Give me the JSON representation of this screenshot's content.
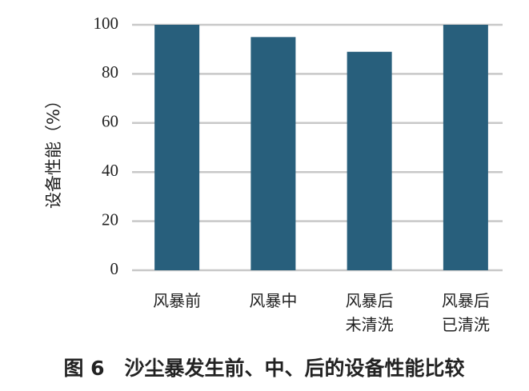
{
  "chart_data": {
    "type": "bar",
    "ylabel": "设备性能（%）",
    "caption": "图 6　沙尘暴发生前、中、后的设备性能比较",
    "categories": [
      "风暴前",
      "风暴中",
      "风暴后\n未清洗",
      "风暴后\n已清洗"
    ],
    "values": [
      100,
      95,
      89,
      100
    ],
    "color": "#285f7c",
    "ylim": [
      0,
      100
    ],
    "yticks": [
      0,
      20,
      40,
      60,
      80,
      100
    ],
    "grid": true
  }
}
